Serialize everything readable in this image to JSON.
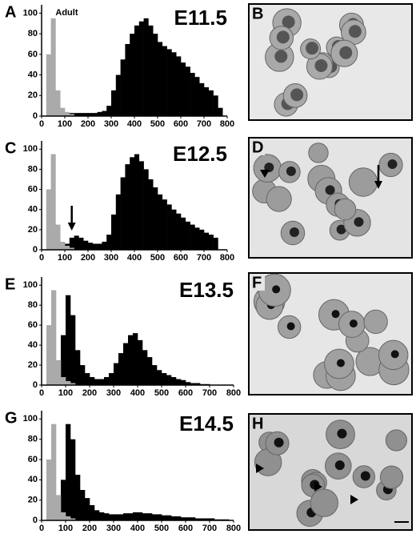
{
  "chart_data": [
    {
      "type": "histogram",
      "label": "A",
      "title": "E11.5",
      "annotation": "Adult",
      "bins": [
        0,
        20,
        40,
        60,
        80,
        100,
        120,
        140,
        160,
        180,
        200,
        220,
        240,
        260,
        280,
        300,
        320,
        340,
        360,
        380,
        400,
        420,
        440,
        460,
        480,
        500,
        520,
        540,
        560,
        580,
        600,
        620,
        640,
        660,
        680,
        700,
        720,
        740,
        760,
        780,
        800
      ],
      "series": [
        {
          "color": "#000000",
          "values": [
            0,
            0,
            0,
            0,
            2,
            3,
            3,
            3,
            3,
            3,
            3,
            3,
            4,
            5,
            10,
            25,
            40,
            55,
            70,
            80,
            88,
            92,
            95,
            88,
            80,
            72,
            68,
            65,
            62,
            58,
            52,
            48,
            42,
            38,
            32,
            28,
            25,
            20,
            8,
            0
          ]
        },
        {
          "color": "#aaaaaa",
          "values": [
            0,
            60,
            95,
            25,
            8,
            4,
            2,
            0,
            0,
            0,
            0,
            0,
            0,
            0,
            0,
            0,
            0,
            0,
            0,
            0,
            0,
            0,
            0,
            0,
            0,
            0,
            0,
            0,
            0,
            0,
            0,
            0,
            0,
            0,
            0,
            0,
            0,
            0,
            0,
            0
          ]
        }
      ],
      "xlim": [
        0,
        800
      ],
      "ylim": [
        0,
        105
      ],
      "xticks": [
        0,
        100,
        200,
        300,
        400,
        500,
        600,
        700,
        800
      ],
      "yticks": [
        0,
        20,
        40,
        60,
        80,
        100
      ]
    },
    {
      "type": "histogram",
      "label": "C",
      "title": "E12.5",
      "bins": [
        0,
        20,
        40,
        60,
        80,
        100,
        120,
        140,
        160,
        180,
        200,
        220,
        240,
        260,
        280,
        300,
        320,
        340,
        360,
        380,
        400,
        420,
        440,
        460,
        480,
        500,
        520,
        540,
        560,
        580,
        600,
        620,
        640,
        660,
        680,
        700,
        720,
        740,
        760,
        780,
        800
      ],
      "series": [
        {
          "color": "#000000",
          "values": [
            0,
            0,
            0,
            0,
            3,
            6,
            12,
            14,
            12,
            9,
            7,
            6,
            6,
            8,
            15,
            35,
            55,
            72,
            85,
            92,
            95,
            88,
            80,
            70,
            62,
            55,
            50,
            45,
            40,
            36,
            32,
            28,
            25,
            22,
            20,
            17,
            15,
            12,
            0,
            0
          ]
        },
        {
          "color": "#aaaaaa",
          "values": [
            0,
            60,
            95,
            25,
            8,
            4,
            2,
            0,
            0,
            0,
            0,
            0,
            0,
            0,
            0,
            0,
            0,
            0,
            0,
            0,
            0,
            0,
            0,
            0,
            0,
            0,
            0,
            0,
            0,
            0,
            0,
            0,
            0,
            0,
            0,
            0,
            0,
            0,
            0,
            0
          ]
        }
      ],
      "xlim": [
        0,
        800
      ],
      "ylim": [
        0,
        105
      ],
      "xticks": [
        0,
        100,
        200,
        300,
        400,
        500,
        600,
        700,
        800
      ],
      "yticks": [
        0,
        20,
        40,
        60,
        80,
        100
      ]
    },
    {
      "type": "histogram",
      "label": "E",
      "title": "E13.5",
      "bins": [
        0,
        20,
        40,
        60,
        80,
        100,
        120,
        140,
        160,
        180,
        200,
        220,
        240,
        260,
        280,
        300,
        320,
        340,
        360,
        380,
        400,
        420,
        440,
        460,
        480,
        500,
        520,
        540,
        560,
        580,
        600,
        620,
        640,
        660,
        680,
        700,
        720,
        740,
        760,
        780,
        800
      ],
      "series": [
        {
          "color": "#000000",
          "values": [
            0,
            0,
            0,
            10,
            50,
            90,
            70,
            35,
            20,
            12,
            8,
            6,
            6,
            8,
            12,
            22,
            32,
            42,
            50,
            52,
            45,
            35,
            28,
            20,
            15,
            12,
            10,
            8,
            6,
            5,
            3,
            2,
            2,
            1,
            1,
            0,
            0,
            0,
            0,
            0
          ]
        },
        {
          "color": "#aaaaaa",
          "values": [
            0,
            60,
            95,
            25,
            8,
            4,
            2,
            0,
            0,
            0,
            0,
            0,
            0,
            0,
            0,
            0,
            0,
            0,
            0,
            0,
            0,
            0,
            0,
            0,
            0,
            0,
            0,
            0,
            0,
            0,
            0,
            0,
            0,
            0,
            0,
            0,
            0,
            0,
            0,
            0
          ]
        }
      ],
      "xlim": [
        0,
        800
      ],
      "ylim": [
        0,
        105
      ],
      "xticks": [
        0,
        100,
        200,
        300,
        400,
        500,
        600,
        700,
        800
      ],
      "yticks": [
        0,
        20,
        40,
        60,
        80,
        100
      ]
    },
    {
      "type": "histogram",
      "label": "G",
      "title": "E14.5",
      "bins": [
        0,
        20,
        40,
        60,
        80,
        100,
        120,
        140,
        160,
        180,
        200,
        220,
        240,
        260,
        280,
        300,
        320,
        340,
        360,
        380,
        400,
        420,
        440,
        460,
        480,
        500,
        520,
        540,
        560,
        580,
        600,
        620,
        640,
        660,
        680,
        700,
        720,
        740,
        760,
        780,
        800
      ],
      "series": [
        {
          "color": "#000000",
          "values": [
            0,
            0,
            0,
            8,
            40,
            95,
            80,
            45,
            30,
            22,
            15,
            10,
            8,
            7,
            6,
            6,
            6,
            7,
            7,
            8,
            8,
            7,
            7,
            6,
            6,
            5,
            5,
            4,
            4,
            3,
            3,
            3,
            2,
            2,
            2,
            2,
            1,
            1,
            1,
            0
          ]
        },
        {
          "color": "#aaaaaa",
          "values": [
            0,
            60,
            95,
            25,
            8,
            4,
            2,
            0,
            0,
            0,
            0,
            0,
            0,
            0,
            0,
            0,
            0,
            0,
            0,
            0,
            0,
            0,
            0,
            0,
            0,
            0,
            0,
            0,
            0,
            0,
            0,
            0,
            0,
            0,
            0,
            0,
            0,
            0,
            0,
            0
          ]
        }
      ],
      "xlim": [
        0,
        800
      ],
      "ylim": [
        0,
        105
      ],
      "xticks": [
        0,
        100,
        200,
        300,
        400,
        500,
        600,
        700,
        800
      ],
      "yticks": [
        0,
        20,
        40,
        60,
        80,
        100
      ]
    }
  ],
  "images": [
    {
      "label": "B"
    },
    {
      "label": "D"
    },
    {
      "label": "F"
    },
    {
      "label": "H"
    }
  ]
}
